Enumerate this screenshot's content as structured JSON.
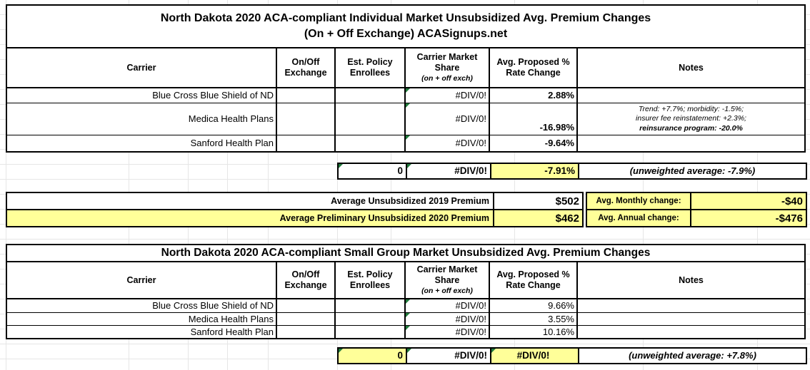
{
  "colors": {
    "highlight_yellow": "#ffff99",
    "error_triangle_green": "#217a3c",
    "border_black": "#000000",
    "gridline_gray": "#e6e6e6"
  },
  "headers": {
    "carrier": "Carrier",
    "exchange": "On/Off Exchange",
    "enrollees": "Est. Policy Enrollees",
    "share": "Carrier Market Share",
    "share_sub": "(on + off exch)",
    "rate": "Avg. Proposed % Rate Change",
    "notes": "Notes"
  },
  "table1": {
    "title_line1": "North Dakota 2020 ACA-compliant Individual Market Unsubsidized Avg. Premium Changes",
    "title_line2": "(On + Off Exchange) ACASignups.net",
    "rows": [
      {
        "carrier": "Blue Cross Blue Shield of ND",
        "exchange": "",
        "enrollees": "",
        "market_share": "#DIV/0!",
        "rate_change": "2.88%",
        "notes": ""
      },
      {
        "carrier": "Medica Health Plans",
        "exchange": "",
        "enrollees": "",
        "market_share": "#DIV/0!",
        "rate_change": "-16.98%",
        "notes_line1": "Trend: +7.7%; morbidity: -1.5%;",
        "notes_line2": "insurer fee reinstatement: +2.3%;",
        "notes_line3": "reinsurance program: -20.0%"
      },
      {
        "carrier": "Sanford Health Plan",
        "exchange": "",
        "enrollees": "",
        "market_share": "#DIV/0!",
        "rate_change": "-9.64%",
        "notes": ""
      }
    ],
    "totals": {
      "enrollees": "0",
      "market_share": "#DIV/0!",
      "rate_change": "-7.91%",
      "note": "(unweighted average: -7.9%)"
    }
  },
  "premium_summary": {
    "row_2019": {
      "label": "Average Unsubsidized 2019 Premium",
      "value": "$502"
    },
    "row_2020": {
      "label": "Average Preliminary Unsubsidized 2020 Premium",
      "value": "$462"
    },
    "monthly": {
      "label": "Avg. Monthly change:",
      "value": "-$40"
    },
    "annual": {
      "label": "Avg. Annual change:",
      "value": "-$476"
    }
  },
  "table2": {
    "title": "North Dakota 2020 ACA-compliant Small Group Market Unsubsidized Avg. Premium Changes",
    "rows": [
      {
        "carrier": "Blue Cross Blue Shield of ND",
        "exchange": "",
        "enrollees": "",
        "market_share": "#DIV/0!",
        "rate_change": "9.66%",
        "notes": ""
      },
      {
        "carrier": "Medica Health Plans",
        "exchange": "",
        "enrollees": "",
        "market_share": "#DIV/0!",
        "rate_change": "3.55%",
        "notes": ""
      },
      {
        "carrier": "Sanford Health Plan",
        "exchange": "",
        "enrollees": "",
        "market_share": "#DIV/0!",
        "rate_change": "10.16%",
        "notes": ""
      }
    ],
    "totals": {
      "enrollees": "0",
      "market_share": "#DIV/0!",
      "rate_change": "#DIV/0!",
      "note": "(unweighted average: +7.8%)"
    }
  }
}
